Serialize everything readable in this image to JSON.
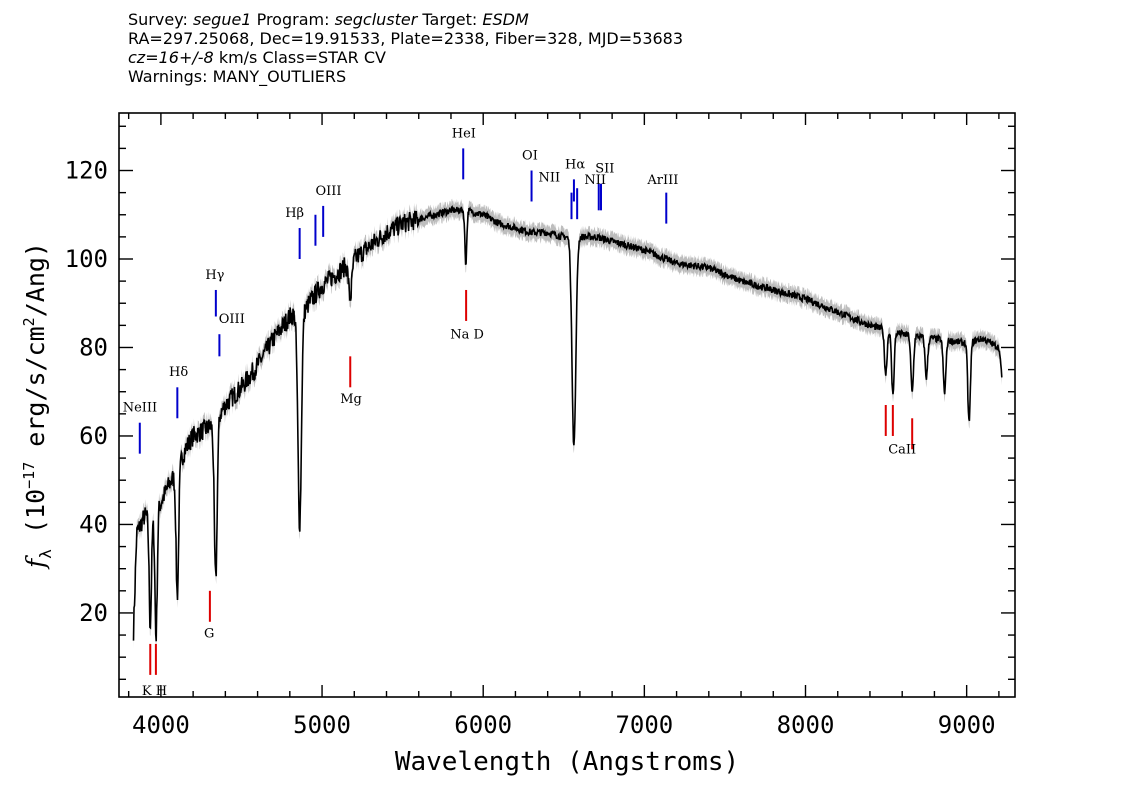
{
  "header": {
    "line1": {
      "survey_label": "Survey:",
      "survey": "segue1",
      "program_label": "Program:",
      "program": "segcluster",
      "target_label": "Target:",
      "target": "ESDM"
    },
    "line2": "RA=297.25068, Dec=19.91533, Plate=2338, Fiber=328, MJD=53683",
    "line3": {
      "cz": "cz=16+/-8",
      "rest": "km/s Class=STAR CV"
    },
    "line4": "Warnings: MANY_OUTLIERS"
  },
  "colors": {
    "spectrum": "#000000",
    "error": "#bdbdbd",
    "emission": "#0000cc",
    "absorption": "#dd0000"
  },
  "chart_data": {
    "type": "line",
    "xlabel": "Wavelength (Angstroms)",
    "ylabel": "f_λ (10^-17 erg/s/cm^2/Ang)",
    "xlim": [
      3740,
      9300
    ],
    "ylim": [
      1,
      133
    ],
    "xticks": [
      4000,
      5000,
      6000,
      7000,
      8000,
      9000
    ],
    "yticks": [
      20,
      40,
      60,
      80,
      100,
      120
    ],
    "continuum": [
      [
        3830,
        16
      ],
      [
        3850,
        38
      ],
      [
        3900,
        42
      ],
      [
        3950,
        41
      ],
      [
        4000,
        45
      ],
      [
        4050,
        49
      ],
      [
        4100,
        52
      ],
      [
        4150,
        57
      ],
      [
        4200,
        60
      ],
      [
        4300,
        62
      ],
      [
        4350,
        64
      ],
      [
        4400,
        67
      ],
      [
        4500,
        71
      ],
      [
        4600,
        76
      ],
      [
        4700,
        82
      ],
      [
        4800,
        87
      ],
      [
        4900,
        89
      ],
      [
        5000,
        94
      ],
      [
        5100,
        97
      ],
      [
        5200,
        100
      ],
      [
        5300,
        103
      ],
      [
        5400,
        106
      ],
      [
        5500,
        108
      ],
      [
        5600,
        109
      ],
      [
        5700,
        110
      ],
      [
        5800,
        111
      ],
      [
        5900,
        111
      ],
      [
        6000,
        110
      ],
      [
        6100,
        108
      ],
      [
        6200,
        107
      ],
      [
        6300,
        106
      ],
      [
        6400,
        106
      ],
      [
        6500,
        105
      ],
      [
        6600,
        105
      ],
      [
        6700,
        105
      ],
      [
        6800,
        104
      ],
      [
        6900,
        103
      ],
      [
        7000,
        102
      ],
      [
        7200,
        99
      ],
      [
        7400,
        98
      ],
      [
        7600,
        95
      ],
      [
        7800,
        93
      ],
      [
        8000,
        91
      ],
      [
        8200,
        88
      ],
      [
        8400,
        85
      ],
      [
        8600,
        83
      ],
      [
        8800,
        82
      ],
      [
        9000,
        81
      ],
      [
        9100,
        82
      ],
      [
        9200,
        80
      ],
      [
        9220,
        73
      ]
    ],
    "absorption_features": [
      {
        "center": 3934,
        "depth": 24,
        "width": 7
      },
      {
        "center": 3970,
        "depth": 28,
        "width": 7
      },
      {
        "center": 4102,
        "depth": 28,
        "width": 8
      },
      {
        "center": 4340,
        "depth": 36,
        "width": 9
      },
      {
        "center": 4861,
        "depth": 48,
        "width": 11
      },
      {
        "center": 5175,
        "depth": 8,
        "width": 10
      },
      {
        "center": 5892,
        "depth": 12,
        "width": 6
      },
      {
        "center": 6563,
        "depth": 47,
        "width": 12
      },
      {
        "center": 8498,
        "depth": 10,
        "width": 8
      },
      {
        "center": 8542,
        "depth": 14,
        "width": 8
      },
      {
        "center": 8662,
        "depth": 13,
        "width": 8
      },
      {
        "center": 8750,
        "depth": 9,
        "width": 8
      },
      {
        "center": 8863,
        "depth": 12,
        "width": 8
      },
      {
        "center": 9015,
        "depth": 18,
        "width": 8
      }
    ],
    "emission_lines": [
      {
        "label": "NeIII",
        "wave": 3869,
        "y1": 56,
        "y2": 63
      },
      {
        "label": "Hδ",
        "wave": 4102,
        "y1": 64,
        "y2": 71
      },
      {
        "label": "Hγ",
        "wave": 4341,
        "y1": 93,
        "y2": 87
      },
      {
        "label": "OIII",
        "wave": 4363,
        "y1": 78,
        "y2": 83
      },
      {
        "label": "Hβ",
        "wave": 4861,
        "y1": 100,
        "y2": 107
      },
      {
        "label": "OIII",
        "wave": 4959,
        "y1": 103,
        "y2": 110
      },
      {
        "label": "OIII",
        "wave": 5007,
        "y1": 105,
        "y2": 112
      },
      {
        "label": "HeI",
        "wave": 5876,
        "y1": 118,
        "y2": 125
      },
      {
        "label": "OI",
        "wave": 6300,
        "y1": 113,
        "y2": 120
      },
      {
        "label": "NII",
        "wave": 6548,
        "y1": 109,
        "y2": 115
      },
      {
        "label": "Hα",
        "wave": 6563,
        "y1": 113,
        "y2": 118
      },
      {
        "label": "NII",
        "wave": 6583,
        "y1": 109,
        "y2": 116
      },
      {
        "label": "SII",
        "wave": 6717,
        "y1": 111,
        "y2": 117
      },
      {
        "label": "SII",
        "wave": 6731,
        "y1": 111,
        "y2": 117
      },
      {
        "label": "ArIII",
        "wave": 7136,
        "y1": 108,
        "y2": 115
      }
    ],
    "absorption_lines": [
      {
        "label": "K",
        "wave": 3934,
        "y1": 6,
        "y2": 13
      },
      {
        "label": "H",
        "wave": 3969,
        "y1": 6,
        "y2": 13
      },
      {
        "label": "G",
        "wave": 4304,
        "y1": 18,
        "y2": 25
      },
      {
        "label": "Mg",
        "wave": 5175,
        "y1": 71,
        "y2": 78
      },
      {
        "label": "Na D",
        "wave": 5894,
        "y1": 86,
        "y2": 93
      },
      {
        "label": "CaII",
        "wave": 8498,
        "y1": 60,
        "y2": 67
      },
      {
        "label": "CaII",
        "wave": 8542,
        "y1": 60,
        "y2": 67
      },
      {
        "label": "CaII",
        "wave": 8662,
        "y1": 57,
        "y2": 64
      }
    ],
    "line_labels": [
      {
        "text": "NeIII",
        "wave": 3870,
        "y": 65.5,
        "group": "emission"
      },
      {
        "text": "Hδ",
        "wave": 4110,
        "y": 73.5,
        "group": "emission"
      },
      {
        "text": "Hγ",
        "wave": 4335,
        "y": 95.5,
        "group": "emission"
      },
      {
        "text": "OIII",
        "wave": 4440,
        "y": 85.5,
        "group": "emission"
      },
      {
        "text": "Hβ",
        "wave": 4830,
        "y": 109.5,
        "group": "emission"
      },
      {
        "text": "OIII",
        "wave": 5040,
        "y": 114.5,
        "group": "emission"
      },
      {
        "text": "HeI",
        "wave": 5880,
        "y": 127.5,
        "group": "emission"
      },
      {
        "text": "OI",
        "wave": 6290,
        "y": 122.5,
        "group": "emission"
      },
      {
        "text": "NII",
        "wave": 6410,
        "y": 117.5,
        "group": "emission"
      },
      {
        "text": "Hα",
        "wave": 6570,
        "y": 120.5,
        "group": "emission"
      },
      {
        "text": "SII",
        "wave": 6755,
        "y": 119.5,
        "group": "emission"
      },
      {
        "text": "NII",
        "wave": 6695,
        "y": 117,
        "group": "emission"
      },
      {
        "text": "ArIII",
        "wave": 7115,
        "y": 117,
        "group": "emission"
      },
      {
        "text": "K H",
        "wave": 3960,
        "y": 1.5,
        "group": "absorption"
      },
      {
        "text": "G",
        "wave": 4300,
        "y": 14.5,
        "group": "absorption"
      },
      {
        "text": "Mg",
        "wave": 5180,
        "y": 67.5,
        "group": "absorption"
      },
      {
        "text": "Na D",
        "wave": 5900,
        "y": 82,
        "group": "absorption"
      },
      {
        "text": "CaII",
        "wave": 8600,
        "y": 56,
        "group": "absorption"
      }
    ]
  }
}
